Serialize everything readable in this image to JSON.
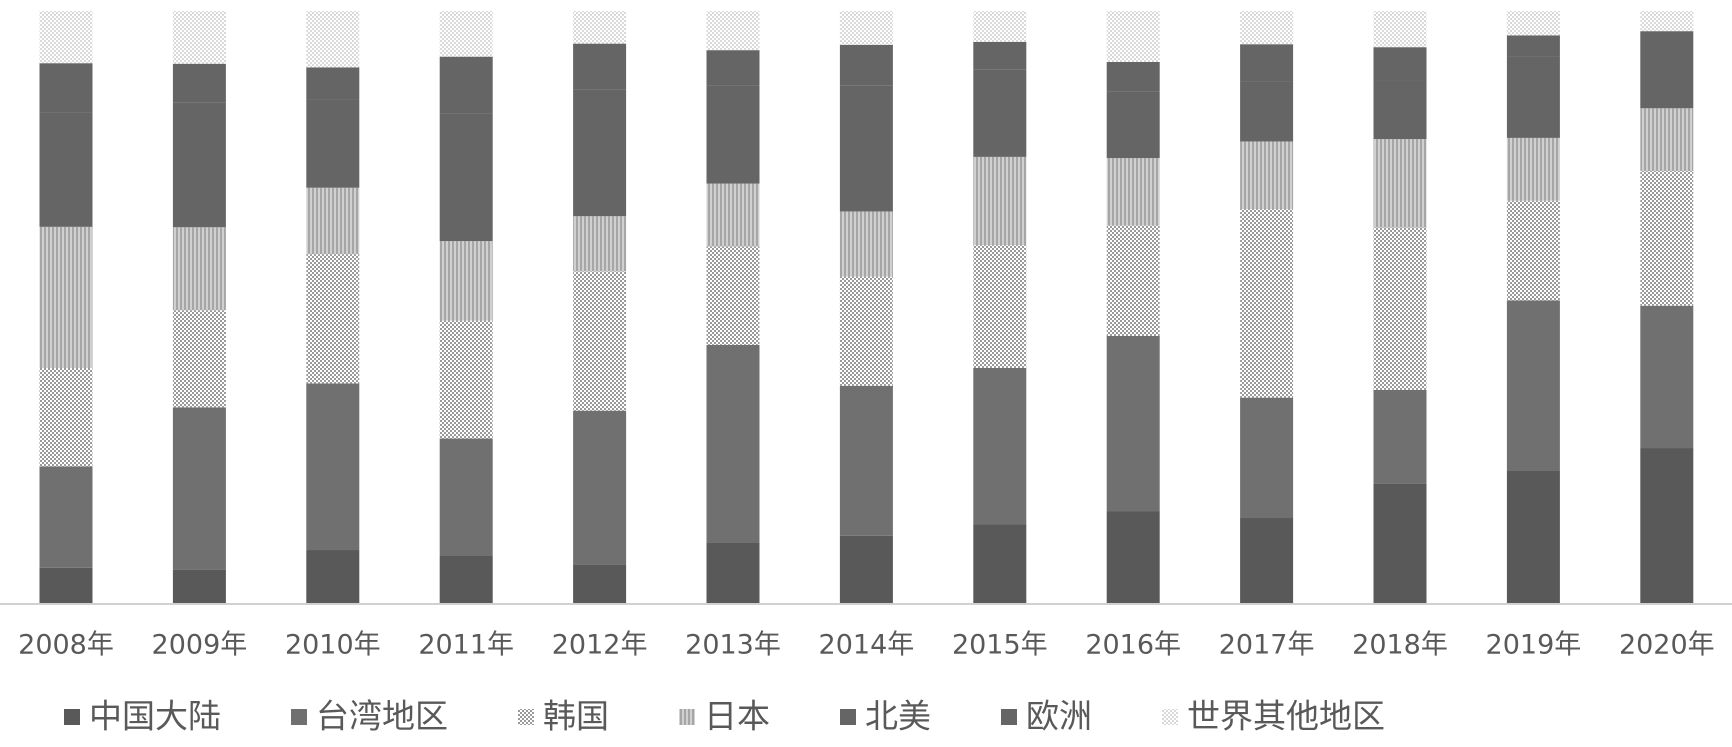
{
  "chart_data": {
    "type": "stacked-bar-100",
    "categories": [
      "2008年",
      "2009年",
      "2010年",
      "2011年",
      "2012年",
      "2013年",
      "2014年",
      "2015年",
      "2016年",
      "2017年",
      "2018年",
      "2019年",
      "2020年"
    ],
    "series": [
      {
        "name": "中国大陆",
        "color": "#595959",
        "pattern": "solid",
        "values": [
          6.1,
          5.8,
          9.1,
          8.2,
          6.7,
          10.4,
          11.5,
          13.4,
          15.6,
          14.5,
          20.3,
          22.5,
          26.3
        ]
      },
      {
        "name": "台湾地区",
        "color": "#707070",
        "pattern": "solid",
        "values": [
          17.1,
          27.4,
          28.1,
          19.7,
          25.9,
          33.3,
          25.3,
          26.4,
          29.6,
          20.3,
          15.8,
          28.7,
          24.0
        ]
      },
      {
        "name": "韩国",
        "color": "#9a9a9a",
        "pattern": "dots",
        "values": [
          16.6,
          16.4,
          21.8,
          19.9,
          23.5,
          16.6,
          18.4,
          20.7,
          18.6,
          31.8,
          27.4,
          16.8,
          22.7
        ]
      },
      {
        "name": "日本",
        "color": "#a6a6a6",
        "pattern": "stripes",
        "values": [
          23.8,
          14.0,
          11.2,
          13.4,
          9.3,
          10.6,
          11.0,
          14.9,
          11.4,
          11.4,
          14.9,
          10.6,
          10.6
        ]
      },
      {
        "name": "北美",
        "color": "#656565",
        "pattern": "solid",
        "values": [
          19.3,
          21.0,
          14.8,
          21.5,
          21.3,
          16.6,
          21.2,
          14.7,
          11.2,
          10.1,
          9.8,
          13.8,
          9.4
        ]
      },
      {
        "name": "欧洲",
        "color": "#656565",
        "pattern": "solid",
        "values": [
          8.3,
          6.6,
          5.5,
          9.6,
          7.8,
          5.9,
          6.9,
          4.7,
          5.0,
          6.3,
          5.7,
          3.5,
          3.6
        ]
      },
      {
        "name": "世界其他地区",
        "color": "#d9d9d9",
        "pattern": "dots",
        "values": [
          8.8,
          8.9,
          9.5,
          7.7,
          5.5,
          6.6,
          5.7,
          5.2,
          8.6,
          5.6,
          6.1,
          4.1,
          3.4
        ]
      }
    ]
  }
}
